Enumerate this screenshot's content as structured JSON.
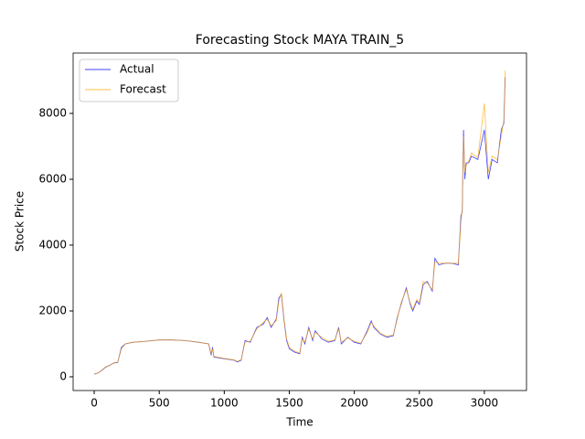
{
  "chart_data": {
    "type": "line",
    "title": "Forecasting Stock MAYA TRAIN_5",
    "xlabel": "Time",
    "ylabel": "Stock Price",
    "x": [
      0,
      30,
      60,
      90,
      120,
      150,
      180,
      210,
      240,
      300,
      400,
      500,
      600,
      700,
      800,
      880,
      900,
      910,
      920,
      1000,
      1080,
      1100,
      1130,
      1160,
      1200,
      1250,
      1300,
      1330,
      1360,
      1400,
      1420,
      1440,
      1460,
      1480,
      1500,
      1540,
      1580,
      1600,
      1620,
      1650,
      1680,
      1700,
      1750,
      1800,
      1850,
      1880,
      1900,
      1950,
      2000,
      2050,
      2100,
      2130,
      2150,
      2200,
      2250,
      2300,
      2330,
      2360,
      2400,
      2430,
      2450,
      2480,
      2500,
      2530,
      2560,
      2600,
      2620,
      2650,
      2700,
      2750,
      2800,
      2820,
      2830,
      2840,
      2850,
      2860,
      2880,
      2900,
      2950,
      3000,
      3030,
      3060,
      3100,
      3130,
      3150,
      3160
    ],
    "series": [
      {
        "name": "Actual",
        "color": "#0000ff",
        "values": [
          80,
          120,
          200,
          300,
          350,
          420,
          430,
          900,
          1000,
          1050,
          1080,
          1120,
          1120,
          1100,
          1050,
          1000,
          650,
          900,
          600,
          550,
          500,
          450,
          500,
          1100,
          1050,
          1500,
          1600,
          1800,
          1500,
          1750,
          2400,
          2500,
          1700,
          1100,
          850,
          750,
          700,
          1200,
          1000,
          1500,
          1100,
          1400,
          1150,
          1050,
          1100,
          1500,
          1000,
          1200,
          1050,
          1000,
          1400,
          1700,
          1500,
          1300,
          1200,
          1250,
          1800,
          2200,
          2700,
          2200,
          2000,
          2300,
          2200,
          2800,
          2900,
          2600,
          3600,
          3400,
          3450,
          3450,
          3400,
          4900,
          5000,
          7500,
          6000,
          6500,
          6500,
          6700,
          6600,
          7500,
          6000,
          6600,
          6500,
          7500,
          7700,
          9100
        ]
      },
      {
        "name": "Forecast",
        "color": "#ffa500",
        "values": [
          90,
          110,
          210,
          310,
          340,
          430,
          440,
          850,
          1000,
          1050,
          1080,
          1120,
          1120,
          1100,
          1050,
          1000,
          700,
          850,
          620,
          560,
          510,
          470,
          520,
          1050,
          1080,
          1450,
          1650,
          1750,
          1550,
          1700,
          2300,
          2550,
          1750,
          1150,
          900,
          780,
          720,
          1150,
          1050,
          1450,
          1150,
          1350,
          1200,
          1080,
          1120,
          1450,
          1050,
          1180,
          1080,
          1020,
          1350,
          1650,
          1550,
          1320,
          1230,
          1270,
          1750,
          2250,
          2650,
          2250,
          2050,
          2350,
          2250,
          2900,
          2850,
          2650,
          3500,
          3450,
          3450,
          3450,
          3450,
          4700,
          5100,
          7300,
          6200,
          6400,
          6550,
          6800,
          6650,
          8300,
          6200,
          6700,
          6600,
          7300,
          7800,
          9300
        ]
      }
    ],
    "xlim": [
      -162,
      3324
    ],
    "ylim": [
      -417,
      9833
    ],
    "xticks": [
      0,
      500,
      1000,
      1500,
      2000,
      2500,
      3000
    ],
    "yticks": [
      0,
      2000,
      4000,
      6000,
      8000
    ],
    "legend": "upper left"
  }
}
